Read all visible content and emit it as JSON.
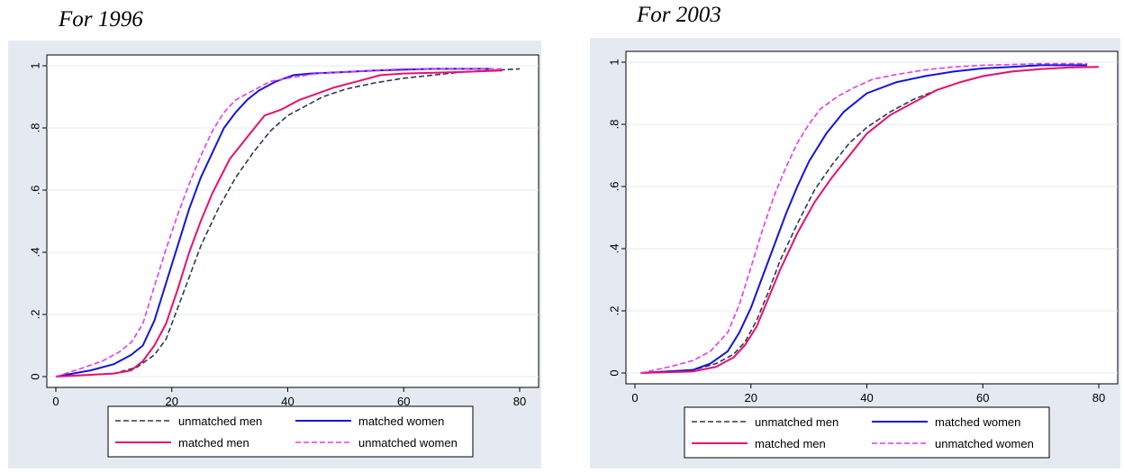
{
  "chart_data": [
    {
      "type": "line",
      "title": "For 1996",
      "xlabel": "",
      "ylabel": "",
      "xlim": [
        0,
        80
      ],
      "ylim": [
        0,
        1
      ],
      "xticks": [
        "0",
        "20",
        "40",
        "60",
        "80"
      ],
      "yticks": [
        "0",
        ".2",
        ".4",
        ".6",
        ".8",
        "1"
      ],
      "grid": true,
      "legend_position": "bottom",
      "series": [
        {
          "name": "unmatched men",
          "color": "#2d3b4e",
          "dash": "dash",
          "x": [
            0,
            10,
            14,
            17,
            19,
            21,
            23,
            25,
            28,
            31,
            34,
            37,
            40,
            43,
            46,
            50,
            55,
            60,
            65,
            70,
            75,
            80
          ],
          "y": [
            0,
            0.01,
            0.03,
            0.07,
            0.12,
            0.22,
            0.32,
            0.42,
            0.54,
            0.64,
            0.72,
            0.79,
            0.84,
            0.87,
            0.9,
            0.925,
            0.945,
            0.96,
            0.97,
            0.98,
            0.985,
            0.99
          ]
        },
        {
          "name": "matched women",
          "color": "#1414e0",
          "dash": "solid",
          "x": [
            0,
            6,
            10,
            13,
            15,
            17,
            19,
            21,
            23,
            25,
            27,
            29,
            31,
            33,
            35,
            38,
            41,
            44,
            50,
            55,
            65,
            75
          ],
          "y": [
            0,
            0.02,
            0.04,
            0.07,
            0.1,
            0.18,
            0.3,
            0.42,
            0.54,
            0.64,
            0.72,
            0.8,
            0.85,
            0.89,
            0.92,
            0.95,
            0.97,
            0.975,
            0.98,
            0.985,
            0.99,
            0.99
          ]
        },
        {
          "name": "matched men",
          "color": "#e8106e",
          "dash": "solid",
          "x": [
            0,
            10,
            13,
            15,
            17,
            19,
            21,
            23,
            25,
            27,
            30,
            33,
            36,
            39,
            42,
            45,
            48,
            52,
            56,
            60,
            70,
            77
          ],
          "y": [
            0,
            0.01,
            0.02,
            0.05,
            0.1,
            0.17,
            0.28,
            0.4,
            0.5,
            0.59,
            0.7,
            0.77,
            0.84,
            0.86,
            0.89,
            0.91,
            0.93,
            0.95,
            0.97,
            0.975,
            0.98,
            0.985
          ]
        },
        {
          "name": "unmatched women",
          "color": "#e63ce6",
          "dash": "dash",
          "x": [
            0,
            5,
            8,
            11,
            13,
            15,
            17,
            19,
            21,
            23,
            25,
            27,
            29,
            31,
            34,
            37,
            40,
            45,
            50,
            60,
            70,
            77
          ],
          "y": [
            0,
            0.03,
            0.05,
            0.08,
            0.11,
            0.17,
            0.29,
            0.41,
            0.52,
            0.62,
            0.71,
            0.79,
            0.85,
            0.89,
            0.92,
            0.95,
            0.96,
            0.975,
            0.98,
            0.99,
            0.99,
            0.99
          ]
        }
      ]
    },
    {
      "type": "line",
      "title": "For 2003",
      "xlabel": "",
      "ylabel": "",
      "xlim": [
        0,
        80
      ],
      "ylim": [
        0,
        1
      ],
      "xticks": [
        "0",
        "20",
        "40",
        "60",
        "80"
      ],
      "yticks": [
        "0",
        ".2",
        ".4",
        ".6",
        ".8",
        "1"
      ],
      "grid": true,
      "legend_position": "bottom",
      "series": [
        {
          "name": "unmatched men",
          "color": "#2d3b4e",
          "dash": "dash",
          "x": [
            1,
            10,
            14,
            17,
            19,
            21,
            23,
            25,
            28,
            31,
            34,
            37,
            40,
            44,
            48,
            52,
            56,
            60,
            65,
            70,
            75,
            80
          ],
          "y": [
            0,
            0.01,
            0.03,
            0.06,
            0.1,
            0.17,
            0.26,
            0.36,
            0.48,
            0.59,
            0.67,
            0.74,
            0.79,
            0.84,
            0.88,
            0.91,
            0.935,
            0.955,
            0.97,
            0.978,
            0.983,
            0.985
          ]
        },
        {
          "name": "matched women",
          "color": "#1414e0",
          "dash": "solid",
          "x": [
            1,
            10,
            13,
            16,
            18,
            20,
            22,
            24,
            26,
            28,
            30,
            33,
            36,
            40,
            45,
            50,
            55,
            60,
            65,
            70,
            75,
            78
          ],
          "y": [
            0,
            0.01,
            0.03,
            0.07,
            0.13,
            0.21,
            0.31,
            0.41,
            0.51,
            0.6,
            0.68,
            0.77,
            0.84,
            0.9,
            0.935,
            0.955,
            0.97,
            0.98,
            0.985,
            0.99,
            0.99,
            0.99
          ]
        },
        {
          "name": "matched men",
          "color": "#e8106e",
          "dash": "solid",
          "x": [
            1,
            10,
            14,
            17,
            19,
            21,
            23,
            25,
            28,
            31,
            34,
            37,
            40,
            44,
            48,
            52,
            56,
            60,
            65,
            70,
            75,
            80
          ],
          "y": [
            0,
            0.005,
            0.02,
            0.05,
            0.09,
            0.15,
            0.24,
            0.33,
            0.45,
            0.55,
            0.63,
            0.7,
            0.77,
            0.83,
            0.87,
            0.91,
            0.935,
            0.955,
            0.97,
            0.978,
            0.983,
            0.985
          ]
        },
        {
          "name": "unmatched women",
          "color": "#e63ce6",
          "dash": "dash",
          "x": [
            1,
            6,
            10,
            13,
            16,
            18,
            20,
            22,
            24,
            26,
            28,
            30,
            32,
            35,
            38,
            41,
            45,
            50,
            55,
            60,
            70,
            78
          ],
          "y": [
            0,
            0.02,
            0.04,
            0.07,
            0.13,
            0.22,
            0.34,
            0.46,
            0.57,
            0.66,
            0.74,
            0.8,
            0.85,
            0.89,
            0.92,
            0.945,
            0.96,
            0.975,
            0.985,
            0.99,
            0.995,
            0.995
          ]
        }
      ]
    }
  ]
}
